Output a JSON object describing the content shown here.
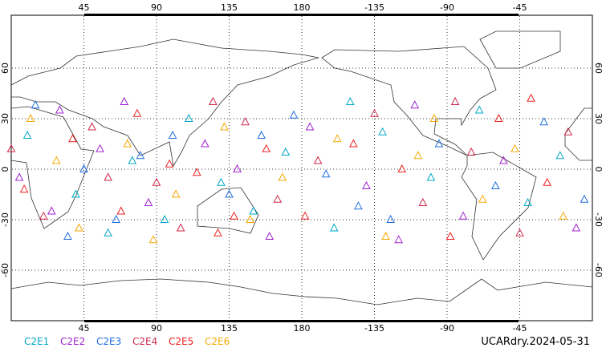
{
  "chart_data": {
    "type": "scatter",
    "title": "UCARdry.2024-05-31",
    "xlim": [
      0,
      360
    ],
    "ylim": [
      -90,
      90
    ],
    "xticks": [
      45,
      90,
      135,
      180,
      -135,
      -90,
      -45
    ],
    "yticks": [
      60,
      30,
      0,
      -30,
      -60
    ],
    "grid": true,
    "series": [
      {
        "name": "C2E1",
        "color": "#00a8c8",
        "x": [
          10,
          40,
          75,
          110,
          150,
          170,
          -160,
          -130,
          -100,
          -70,
          -40,
          -20,
          60,
          130,
          -150,
          95
        ],
        "y": [
          20,
          -15,
          5,
          30,
          -25,
          10,
          -35,
          22,
          -5,
          35,
          -20,
          8,
          -38,
          -8,
          40,
          -30
        ]
      },
      {
        "name": "C2E2",
        "color": "#a020d0",
        "x": [
          5,
          30,
          55,
          85,
          120,
          160,
          -175,
          -140,
          -110,
          -80,
          -55,
          -10,
          70,
          140,
          -120,
          25
        ],
        "y": [
          -5,
          35,
          12,
          -20,
          15,
          -40,
          25,
          -10,
          38,
          -28,
          5,
          -35,
          40,
          0,
          -42,
          -25
        ]
      },
      {
        "name": "C2E3",
        "color": "#1e6ee0",
        "x": [
          15,
          45,
          65,
          100,
          135,
          175,
          -165,
          -125,
          -95,
          -60,
          -30,
          -5,
          80,
          155,
          -145,
          35
        ],
        "y": [
          38,
          0,
          -30,
          20,
          -15,
          32,
          -3,
          -30,
          15,
          -10,
          28,
          -18,
          8,
          20,
          -22,
          -40
        ]
      },
      {
        "name": "C2E4",
        "color": "#d0284a",
        "x": [
          0,
          20,
          50,
          90,
          125,
          165,
          -170,
          -135,
          -105,
          -75,
          -45,
          -15,
          105,
          145,
          -85,
          60
        ],
        "y": [
          12,
          -28,
          25,
          -8,
          40,
          -18,
          5,
          33,
          -20,
          10,
          -38,
          22,
          -35,
          28,
          40,
          -5
        ]
      },
      {
        "name": "C2E5",
        "color": "#f01e1e",
        "x": [
          8,
          38,
          68,
          98,
          128,
          158,
          -178,
          -148,
          -118,
          -88,
          -58,
          -28,
          78,
          138,
          -38,
          115
        ],
        "y": [
          -12,
          18,
          -25,
          3,
          -38,
          12,
          -28,
          15,
          0,
          -40,
          30,
          -8,
          33,
          -28,
          42,
          -2
        ]
      },
      {
        "name": "C2E6",
        "color": "#f5a800",
        "x": [
          12,
          42,
          72,
          102,
          132,
          168,
          -158,
          -128,
          -98,
          -68,
          -48,
          -18,
          88,
          148,
          -108,
          28
        ],
        "y": [
          30,
          -35,
          15,
          -15,
          25,
          -5,
          18,
          -40,
          30,
          -18,
          12,
          -28,
          -42,
          -30,
          8,
          5
        ]
      }
    ]
  }
}
